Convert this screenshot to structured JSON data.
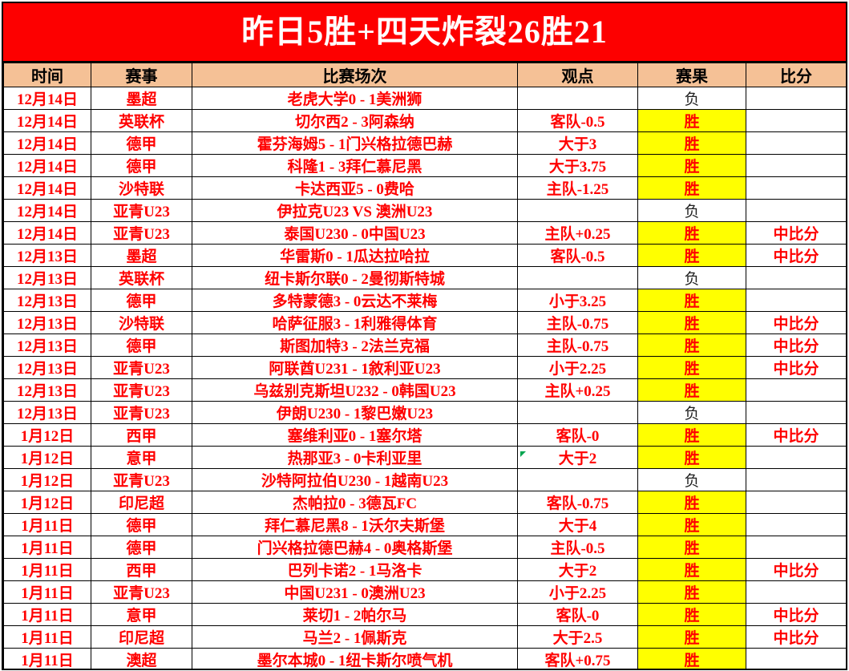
{
  "banner": {
    "title": "昨日5胜+四天炸裂26胜21",
    "bg_color": "#fd0000",
    "text_color": "#ffffff"
  },
  "table": {
    "header_bg": "#f5c196",
    "win_bg": "#ffff00",
    "red_text": "#ff0000",
    "win_value": "胜",
    "loss_value": "负",
    "columns": [
      {
        "key": "date",
        "label": "时间"
      },
      {
        "key": "league",
        "label": "赛事"
      },
      {
        "key": "match",
        "label": "比赛场次"
      },
      {
        "key": "view",
        "label": "观点"
      },
      {
        "key": "result",
        "label": "赛果"
      },
      {
        "key": "score",
        "label": "比分"
      }
    ],
    "rows": [
      {
        "date": "12月14日",
        "league": "墨超",
        "match": "老虎大学0 - 1美洲狮",
        "view": "",
        "result": "负",
        "score": ""
      },
      {
        "date": "12月14日",
        "league": "英联杯",
        "match": "切尔西2 - 3阿森纳",
        "view": "客队-0.5",
        "result": "胜",
        "score": ""
      },
      {
        "date": "12月14日",
        "league": "德甲",
        "match": "霍芬海姆5 - 1门兴格拉德巴赫",
        "view": "大于3",
        "result": "胜",
        "score": ""
      },
      {
        "date": "12月14日",
        "league": "德甲",
        "match": "科隆1 - 3拜仁慕尼黑",
        "view": "大于3.75",
        "result": "胜",
        "score": ""
      },
      {
        "date": "12月14日",
        "league": "沙特联",
        "match": "卡达西亚5 - 0费哈",
        "view": "主队-1.25",
        "result": "胜",
        "score": ""
      },
      {
        "date": "12月14日",
        "league": "亚青U23",
        "match": "伊拉克U23 VS 澳洲U23",
        "view": "",
        "result": "负",
        "score": ""
      },
      {
        "date": "12月14日",
        "league": "亚青U23",
        "match": "泰国U230 - 0中国U23",
        "view": "主队+0.25",
        "result": "胜",
        "score": "中比分"
      },
      {
        "date": "12月13日",
        "league": "墨超",
        "match": "华雷斯0 - 1瓜达拉哈拉",
        "view": "客队-0.5",
        "result": "胜",
        "score": "中比分"
      },
      {
        "date": "12月13日",
        "league": "英联杯",
        "match": "纽卡斯尔联0 - 2曼彻斯特城",
        "view": "",
        "result": "负",
        "score": ""
      },
      {
        "date": "12月13日",
        "league": "德甲",
        "match": "多特蒙德3 - 0云达不莱梅",
        "view": "小于3.25",
        "result": "胜",
        "score": ""
      },
      {
        "date": "12月13日",
        "league": "沙特联",
        "match": "哈萨征服3 - 1利雅得体育",
        "view": "主队-0.75",
        "result": "胜",
        "score": "中比分"
      },
      {
        "date": "12月13日",
        "league": "德甲",
        "match": "斯图加特3 - 2法兰克福",
        "view": "主队-0.75",
        "result": "胜",
        "score": "中比分"
      },
      {
        "date": "12月13日",
        "league": "亚青U23",
        "match": "阿联酋U231 - 1敘利亚U23",
        "view": "小于2.25",
        "result": "胜",
        "score": "中比分"
      },
      {
        "date": "12月13日",
        "league": "亚青U23",
        "match": "乌兹别克斯坦U232 - 0韩国U23",
        "view": "主队+0.25",
        "result": "胜",
        "score": ""
      },
      {
        "date": "12月13日",
        "league": "亚青U23",
        "match": "伊朗U230 - 1黎巴嫩U23",
        "view": "",
        "result": "负",
        "score": ""
      },
      {
        "date": "1月12日",
        "league": "西甲",
        "match": "塞维利亚0 - 1塞尔塔",
        "view": "客队-0",
        "result": "胜",
        "score": "中比分"
      },
      {
        "date": "1月12日",
        "league": "意甲",
        "match": "热那亚3 - 0卡利亚里",
        "view": "大于2",
        "result": "胜",
        "score": ""
      },
      {
        "date": "1月12日",
        "league": "亚青U23",
        "match": "沙特阿拉伯U230 - 1越南U23",
        "view": "",
        "result": "负",
        "score": ""
      },
      {
        "date": "1月12日",
        "league": "印尼超",
        "match": "杰帕拉0 - 3德瓦FC",
        "view": "客队-0.75",
        "result": "胜",
        "score": ""
      },
      {
        "date": "1月11日",
        "league": "德甲",
        "match": "拜仁慕尼黑8 - 1沃尔夫斯堡",
        "view": "大于4",
        "result": "胜",
        "score": ""
      },
      {
        "date": "1月11日",
        "league": "德甲",
        "match": "门兴格拉德巴赫4 - 0奥格斯堡",
        "view": "主队-0.5",
        "result": "胜",
        "score": ""
      },
      {
        "date": "1月11日",
        "league": "西甲",
        "match": "巴列卡诺2 - 1马洛卡",
        "view": "大于2",
        "result": "胜",
        "score": "中比分"
      },
      {
        "date": "1月11日",
        "league": "亚青U23",
        "match": "中国U231 - 0澳洲U23",
        "view": "小于2.25",
        "result": "胜",
        "score": ""
      },
      {
        "date": "1月11日",
        "league": "意甲",
        "match": "莱切1 - 2帕尔马",
        "view": "客队-0",
        "result": "胜",
        "score": "中比分"
      },
      {
        "date": "1月11日",
        "league": "印尼超",
        "match": "马兰2 - 1佩斯克",
        "view": "大于2.5",
        "result": "胜",
        "score": "中比分"
      },
      {
        "date": "1月11日",
        "league": "澳超",
        "match": "墨尔本城0 - 1纽卡斯尔喷气机",
        "view": "客队+0.75",
        "result": "胜",
        "score": ""
      }
    ]
  }
}
